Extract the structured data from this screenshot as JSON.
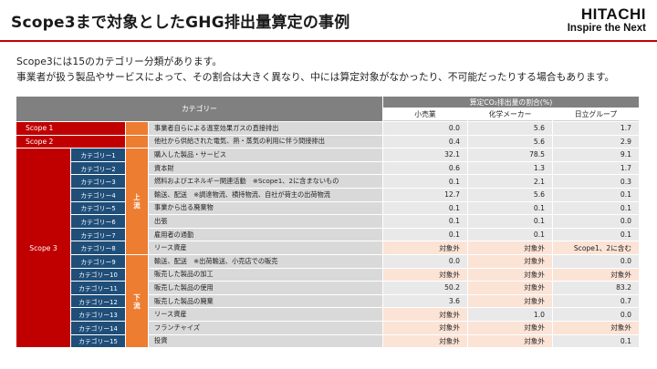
{
  "title": "Scope3まで対象としたGHG排出量算定の事例",
  "logo": {
    "main": "HITACHI",
    "sub": "Inspire the Next"
  },
  "intro": [
    "Scope3には15のカテゴリー分類があります。",
    "事業者が扱う製品やサービスによって、その割合は大きく異なり、中には算定対象がなかったり、不可能だったりする場合もあります。"
  ],
  "table": {
    "header_category": "カテゴリー",
    "header_ratio": "算定CO₂排出量の割合(%)",
    "columns": [
      "小売業",
      "化学メーカー",
      "日立グループ"
    ],
    "upstream_label": [
      "上",
      "流"
    ],
    "downstream_label": [
      "下",
      "流"
    ],
    "scope3_label": "Scope 3",
    "scope_rows": [
      {
        "label": "Scope 1",
        "desc": "事業者自らによる温室効果ガスの直接排出",
        "values": [
          "0.0",
          "5.6",
          "1.7"
        ]
      },
      {
        "label": "Scope 2",
        "desc": "他社から供給された電気、熱・蒸気の利用に伴う間接排出",
        "values": [
          "0.4",
          "5.6",
          "2.9"
        ]
      }
    ],
    "categories": [
      {
        "label": "カテゴリー1",
        "desc": "購入した製品・サービス",
        "values": [
          "32.1",
          "78.5",
          "9.1"
        ]
      },
      {
        "label": "カテゴリー2",
        "desc": "資本財",
        "values": [
          "0.6",
          "1.3",
          "1.7"
        ]
      },
      {
        "label": "カテゴリー3",
        "desc": "燃料およびエネルギー関連活動　※Scope1、2に含まないもの",
        "values": [
          "0.1",
          "2.1",
          "0.3"
        ]
      },
      {
        "label": "カテゴリー4",
        "desc": "輸送、配送　※調達物流、横持物流、自社が荷主の出荷物流",
        "values": [
          "12.7",
          "5.6",
          "0.1"
        ]
      },
      {
        "label": "カテゴリー5",
        "desc": "事業から出る廃棄物",
        "values": [
          "0.1",
          "0.1",
          "0.1"
        ]
      },
      {
        "label": "カテゴリー6",
        "desc": "出張",
        "values": [
          "0.1",
          "0.1",
          "0.0"
        ]
      },
      {
        "label": "カテゴリー7",
        "desc": "雇用者の通勤",
        "values": [
          "0.1",
          "0.1",
          "0.1"
        ]
      },
      {
        "label": "カテゴリー8",
        "desc": "リース資産",
        "values": [
          "対象外",
          "対象外",
          "Scope1、2に含む"
        ]
      },
      {
        "label": "カテゴリー9",
        "desc": "輸送、配送　※出荷輸送、小売店での販売",
        "values": [
          "0.0",
          "対象外",
          "0.0"
        ]
      },
      {
        "label": "カテゴリー10",
        "desc": "販売した製品の加工",
        "values": [
          "対象外",
          "対象外",
          "対象外"
        ]
      },
      {
        "label": "カテゴリー11",
        "desc": "販売した製品の使用",
        "values": [
          "50.2",
          "対象外",
          "83.2"
        ]
      },
      {
        "label": "カテゴリー12",
        "desc": "販売した製品の廃棄",
        "values": [
          "3.6",
          "対象外",
          "0.7"
        ]
      },
      {
        "label": "カテゴリー13",
        "desc": "リース資産",
        "values": [
          "対象外",
          "1.0",
          "0.0"
        ]
      },
      {
        "label": "カテゴリー14",
        "desc": "フランチャイズ",
        "values": [
          "対象外",
          "対象外",
          "対象外"
        ]
      },
      {
        "label": "カテゴリー15",
        "desc": "投資",
        "values": [
          "対象外",
          "対象外",
          "0.1"
        ]
      }
    ]
  }
}
